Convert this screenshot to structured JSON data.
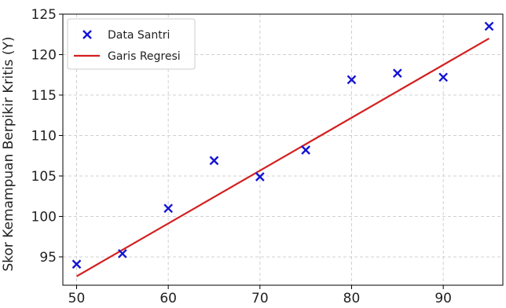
{
  "chart_data": {
    "type": "scatter",
    "title": "",
    "xlabel": "",
    "ylabel": "Skor Kemampuan Berpikir Kritis (Y)",
    "xlim": [
      48.5,
      96.5
    ],
    "ylim": [
      91.5,
      125
    ],
    "x_ticks": [
      50,
      60,
      70,
      80,
      90
    ],
    "y_ticks": [
      95,
      100,
      105,
      110,
      115,
      120,
      125
    ],
    "grid": true,
    "grid_style": "dashed",
    "legend_placement": "top-left",
    "series": [
      {
        "name": "Data Santri",
        "kind": "scatter",
        "marker": "x",
        "color": "#1414d2",
        "x": [
          50,
          55,
          60,
          65,
          70,
          75,
          80,
          85,
          90,
          95
        ],
        "y": [
          94.1,
          95.4,
          101.0,
          106.9,
          104.9,
          108.2,
          116.9,
          117.7,
          117.2,
          123.5
        ]
      },
      {
        "name": "Garis Regresi",
        "kind": "line",
        "color": "#d41f1f",
        "x": [
          50,
          95
        ],
        "y": [
          92.6,
          122.0
        ]
      }
    ]
  }
}
